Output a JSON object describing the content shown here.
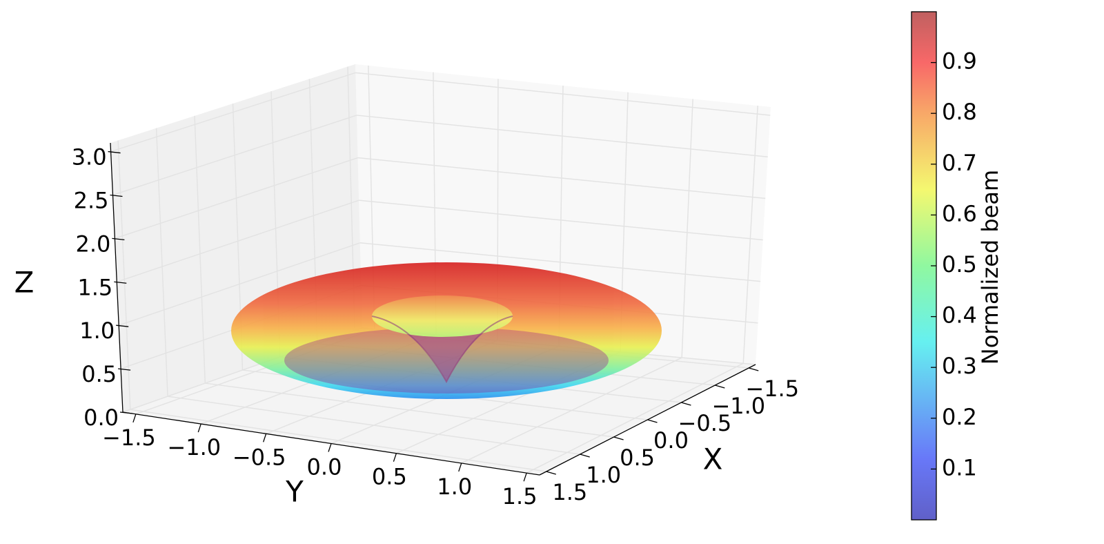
{
  "chart_data": {
    "type": "surface3d",
    "xlabel": "X",
    "ylabel": "Y",
    "zlabel": "Z",
    "xlim": [
      -1.6,
      1.6
    ],
    "ylim": [
      -1.6,
      1.6
    ],
    "zlim": [
      0,
      3.1
    ],
    "xticks": [
      {
        "value": -1.5,
        "label": "−1.5"
      },
      {
        "value": -1,
        "label": "−1.0"
      },
      {
        "value": -0.5,
        "label": "−0.5"
      },
      {
        "value": 0,
        "label": "0.0"
      },
      0.5,
      {
        "value": 1,
        "label": "1.0"
      },
      1.5
    ],
    "yticks": [
      {
        "value": -1.5,
        "label": "−1.5"
      },
      {
        "value": -1,
        "label": "−1.0"
      },
      {
        "value": -0.5,
        "label": "−0.5"
      },
      {
        "value": 0,
        "label": "0.0"
      },
      0.5,
      {
        "value": 1,
        "label": "1.0"
      },
      1.5
    ],
    "zticks": [
      {
        "value": 0,
        "label": "0.0"
      },
      0.5,
      {
        "value": 1,
        "label": "1.0"
      },
      1.5,
      {
        "value": 2,
        "label": "2.0"
      },
      2.5,
      {
        "value": 3,
        "label": "3.0"
      }
    ],
    "colorbar": {
      "label": "Normalized beam",
      "lim": [
        0,
        1
      ],
      "ticks": [
        0.1,
        0.2,
        0.3,
        0.4,
        0.5,
        0.6,
        0.7,
        0.8,
        0.9
      ],
      "colormap": "jet"
    },
    "grid": true
  }
}
